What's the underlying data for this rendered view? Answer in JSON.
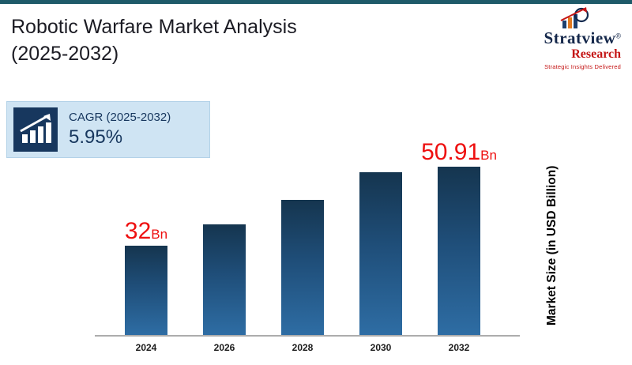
{
  "slide": {
    "title_line1": "Robotic Warfare Market Analysis",
    "title_line2": "(2025-2032)"
  },
  "logo": {
    "brand_top": "Stratview",
    "brand_reg": "®",
    "brand_bottom": "Research",
    "tagline": "Strategic Insights Delivered"
  },
  "cagr": {
    "label": "CAGR (2025-2032)",
    "value": "5.95%"
  },
  "chart_data": {
    "type": "bar",
    "title": "Robotic Warfare Market Analysis (2025-2032)",
    "categories": [
      "2024",
      "2026",
      "2028",
      "2030",
      "2032"
    ],
    "values": [
      32,
      35.9,
      40.3,
      45.2,
      50.91
    ],
    "value_labels": [
      {
        "index": 0,
        "number": "32",
        "suffix": "Bn"
      },
      {
        "index": 4,
        "number": "50.91",
        "suffix": "Bn"
      }
    ],
    "xlabel": "",
    "ylabel": "Market Size (in USD Billion)",
    "ylim": [
      16,
      52
    ],
    "grid": false,
    "legend": "none",
    "bar_color_top": "#15354f",
    "bar_color_bottom": "#2e6da4",
    "value_label_color": "#ee1010"
  }
}
